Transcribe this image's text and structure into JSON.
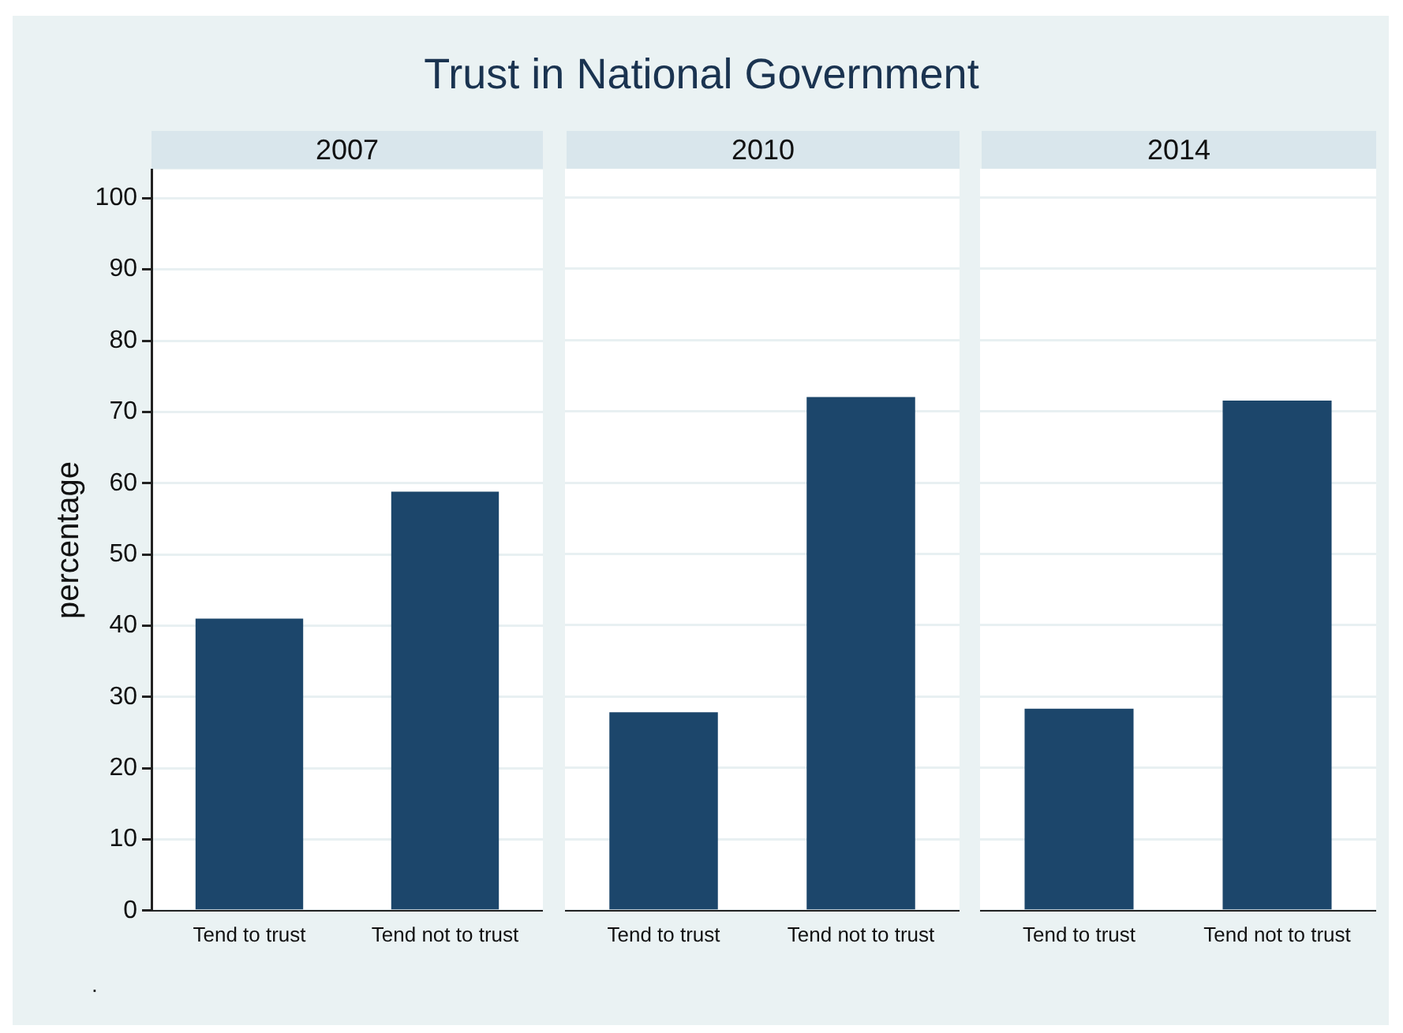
{
  "chart_data": [
    {
      "type": "bar",
      "title": "Trust in National Government",
      "subtitle": "2007",
      "ylabel": "percentage",
      "categories": [
        "Tend to trust",
        "Tend not to trust"
      ],
      "values": [
        41,
        58.8
      ],
      "color": "#1c466b",
      "ylim": [
        0,
        104
      ],
      "yticks": [
        0,
        10,
        20,
        30,
        40,
        50,
        60,
        70,
        80,
        90,
        100
      ],
      "grid": "y",
      "annotations": [
        "."
      ]
    },
    {
      "type": "bar",
      "subtitle": "2010",
      "categories": [
        "Tend to trust",
        "Tend not to trust"
      ],
      "values": [
        27.8,
        72
      ],
      "color": "#1c466b",
      "ylim": [
        0,
        104
      ],
      "yticks": [
        0,
        10,
        20,
        30,
        40,
        50,
        60,
        70,
        80,
        90,
        100
      ],
      "grid": "y",
      "tick_labels": "x"
    },
    {
      "type": "bar",
      "subtitle": "2014",
      "categories": [
        "Tend to trust",
        "Tend not to trust"
      ],
      "values": [
        28.3,
        71.5
      ],
      "color": "#1c466b",
      "ylim": [
        0,
        104
      ],
      "yticks": [
        0,
        10,
        20,
        30,
        40,
        50,
        60,
        70,
        80,
        90,
        100
      ],
      "grid": "y",
      "tick_labels": "x"
    }
  ]
}
